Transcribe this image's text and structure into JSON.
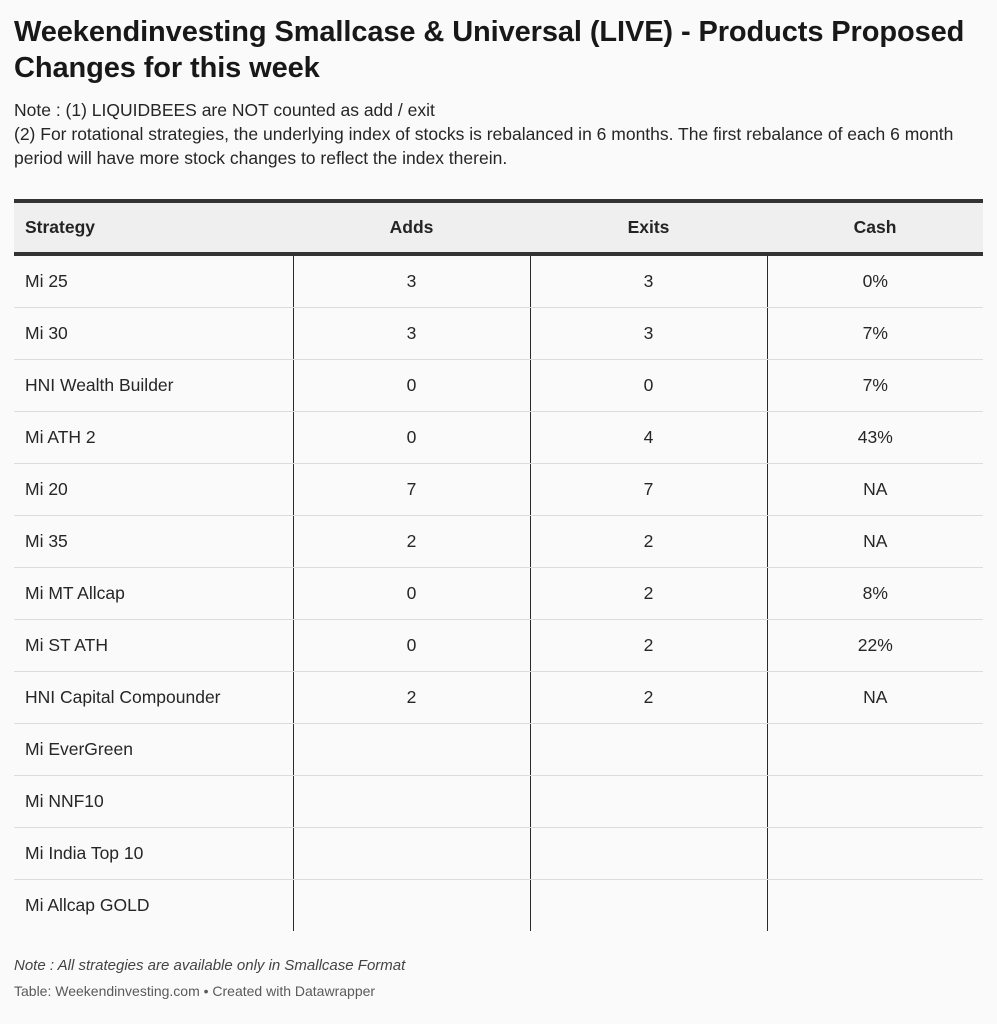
{
  "chart_data": {
    "type": "table",
    "title": "Weekendinvesting Smallcase & Universal (LIVE) - Products Proposed Changes for this week",
    "notes": [
      "Note : (1) LIQUIDBEES are NOT counted as add / exit",
      "(2) For rotational strategies, the underlying index of stocks is rebalanced in 6 months. The first rebalance of each 6 month period will have more stock changes to reflect the index therein."
    ],
    "columns": [
      "Strategy",
      "Adds",
      "Exits",
      "Cash"
    ],
    "rows": [
      [
        "Mi 25",
        "3",
        "3",
        "0%"
      ],
      [
        "Mi 30",
        "3",
        "3",
        "7%"
      ],
      [
        "HNI Wealth Builder",
        "0",
        "0",
        "7%"
      ],
      [
        "Mi ATH 2",
        "0",
        "4",
        "43%"
      ],
      [
        "Mi 20",
        "7",
        "7",
        "NA"
      ],
      [
        "Mi 35",
        "2",
        "2",
        "NA"
      ],
      [
        "Mi MT Allcap",
        "0",
        "2",
        "8%"
      ],
      [
        "Mi ST ATH",
        "0",
        "2",
        "22%"
      ],
      [
        "HNI Capital Compounder",
        "2",
        "2",
        "NA"
      ],
      [
        "Mi EverGreen",
        "",
        "",
        ""
      ],
      [
        "Mi NNF10",
        "",
        "",
        ""
      ],
      [
        "Mi India Top 10",
        "",
        "",
        ""
      ],
      [
        "Mi Allcap GOLD",
        "",
        "",
        ""
      ]
    ],
    "footer_note": "Note : All strategies are available only in Smallcase Format",
    "source": "Table: Weekendinvesting.com • Created with Datawrapper"
  },
  "colors": {
    "background": "#fafafa",
    "header_background": "#efefef",
    "rule": "#333333",
    "row_divider": "#dcdcdc"
  }
}
